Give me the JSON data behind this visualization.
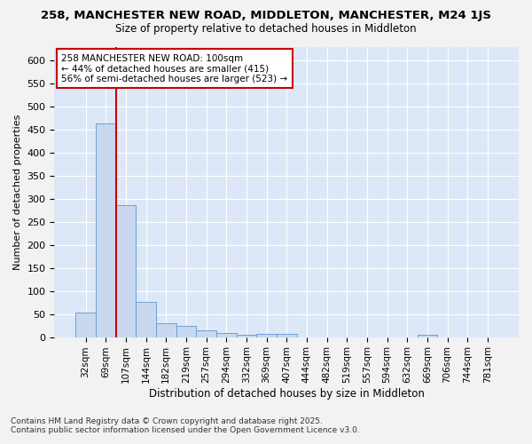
{
  "title_line1": "258, MANCHESTER NEW ROAD, MIDDLETON, MANCHESTER, M24 1JS",
  "title_line2": "Size of property relative to detached houses in Middleton",
  "xlabel": "Distribution of detached houses by size in Middleton",
  "ylabel": "Number of detached properties",
  "categories": [
    "32sqm",
    "69sqm",
    "107sqm",
    "144sqm",
    "182sqm",
    "219sqm",
    "257sqm",
    "294sqm",
    "332sqm",
    "369sqm",
    "407sqm",
    "444sqm",
    "482sqm",
    "519sqm",
    "557sqm",
    "594sqm",
    "632sqm",
    "669sqm",
    "706sqm",
    "744sqm",
    "781sqm"
  ],
  "values": [
    53,
    463,
    287,
    77,
    31,
    25,
    14,
    9,
    5,
    6,
    7,
    0,
    0,
    0,
    0,
    0,
    0,
    5,
    0,
    0,
    0
  ],
  "bar_color": "#c8d9ef",
  "bar_edge_color": "#6b9fd4",
  "plot_bg_color": "#dce8f8",
  "fig_bg_color": "#f2f2f2",
  "grid_color": "#ffffff",
  "red_line_bin": 2,
  "annotation_text": "258 MANCHESTER NEW ROAD: 100sqm\n← 44% of detached houses are smaller (415)\n56% of semi-detached houses are larger (523) →",
  "annotation_box_facecolor": "#ffffff",
  "annotation_box_edgecolor": "#cc0000",
  "red_line_color": "#cc0000",
  "footer_line1": "Contains HM Land Registry data © Crown copyright and database right 2025.",
  "footer_line2": "Contains public sector information licensed under the Open Government Licence v3.0.",
  "ylim": [
    0,
    630
  ],
  "yticks": [
    0,
    50,
    100,
    150,
    200,
    250,
    300,
    350,
    400,
    450,
    500,
    550,
    600
  ]
}
